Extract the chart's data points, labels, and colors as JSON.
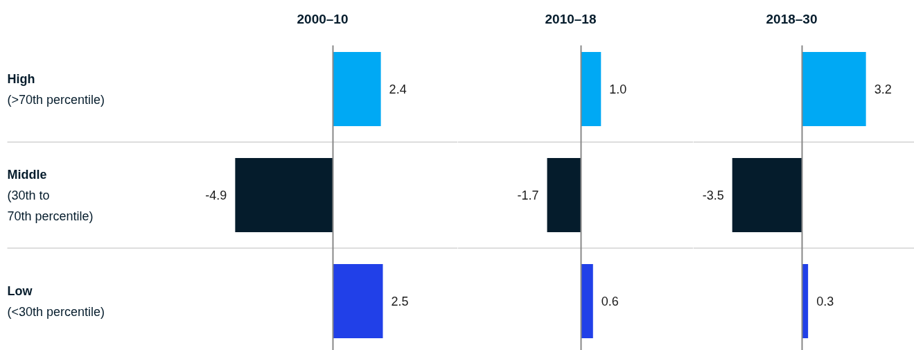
{
  "chart_data": [
    {
      "type": "bar",
      "orientation": "horizontal",
      "title": "2000–10",
      "categories": [
        "High\n(>70th percentile)",
        "Middle\n(30th to\n70th percentile)",
        "Low\n(<30th percentile)"
      ],
      "values": [
        2.4,
        -4.9,
        2.5
      ],
      "value_labels": [
        "2.4",
        "-4.9",
        "2.5"
      ],
      "colors": [
        "#00a9f4",
        "#051c2c",
        "#2140e8"
      ]
    },
    {
      "type": "bar",
      "orientation": "horizontal",
      "title": "2010–18",
      "categories": [
        null,
        null,
        null
      ],
      "values": [
        1.0,
        -1.7,
        0.6
      ],
      "value_labels": [
        "1.0",
        "-1.7",
        "0.6"
      ],
      "colors": [
        "#00a9f4",
        "#051c2c",
        "#2140e8"
      ]
    },
    {
      "type": "bar",
      "orientation": "horizontal",
      "title": "2018–30",
      "categories": [
        null,
        null,
        null
      ],
      "values": [
        3.2,
        -3.5,
        0.3
      ],
      "value_labels": [
        "3.2",
        "-3.5",
        "0.3"
      ],
      "colors": [
        "#00a9f4",
        "#051c2c",
        "#2140e8"
      ]
    }
  ]
}
